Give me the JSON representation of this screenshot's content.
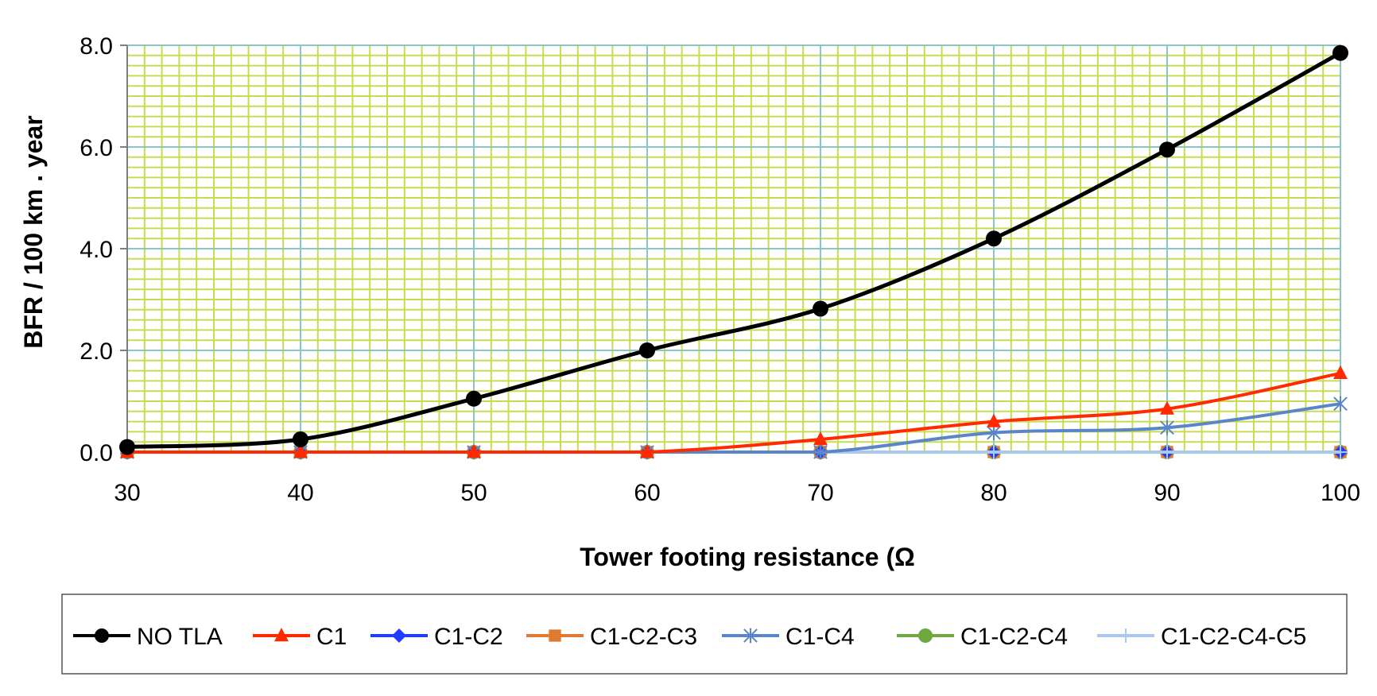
{
  "chart_data": {
    "type": "line",
    "xlabel": "Tower footing resistance (Ω",
    "ylabel": "BFR / 100 km . year",
    "x": [
      30,
      40,
      50,
      60,
      70,
      80,
      90,
      100
    ],
    "x_ticks": [
      "30",
      "40",
      "50",
      "60",
      "70",
      "80",
      "90",
      "100"
    ],
    "y_ticks": [
      "0.0",
      "2.0",
      "4.0",
      "6.0",
      "8.0"
    ],
    "ylim": [
      0,
      8
    ],
    "xlim": [
      30,
      100
    ],
    "grid": true,
    "legend_position": "bottom",
    "plot_background": "#c8dc50",
    "series": [
      {
        "name": "NO TLA",
        "color": "#000000",
        "marker": "circle",
        "values": [
          0.1,
          0.25,
          1.05,
          2.0,
          2.82,
          4.2,
          5.95,
          7.85
        ]
      },
      {
        "name": "C1",
        "color": "#ff2a00",
        "marker": "triangle",
        "values": [
          0,
          0,
          0,
          0,
          0.25,
          0.6,
          0.85,
          1.55
        ]
      },
      {
        "name": "C1-C2",
        "color": "#1f3cff",
        "marker": "diamond",
        "values": [
          0,
          0,
          0,
          0,
          0,
          0,
          0,
          0
        ]
      },
      {
        "name": "C1-C2-C3",
        "color": "#e07a30",
        "marker": "square",
        "values": [
          0,
          0,
          0,
          0,
          0,
          0,
          0,
          0
        ]
      },
      {
        "name": "C1-C4",
        "color": "#5a85c8",
        "marker": "star",
        "values": [
          0,
          0,
          0,
          0,
          0,
          0.38,
          0.48,
          0.95
        ]
      },
      {
        "name": "C1-C2-C4",
        "color": "#70a840",
        "marker": "circle",
        "values": [
          0,
          0,
          0,
          0,
          0,
          0,
          0,
          0
        ]
      },
      {
        "name": "C1-C2-C4-C5",
        "color": "#a8c8ec",
        "marker": "plus",
        "values": [
          0,
          0,
          0,
          0,
          0,
          0,
          0,
          0
        ]
      }
    ]
  }
}
